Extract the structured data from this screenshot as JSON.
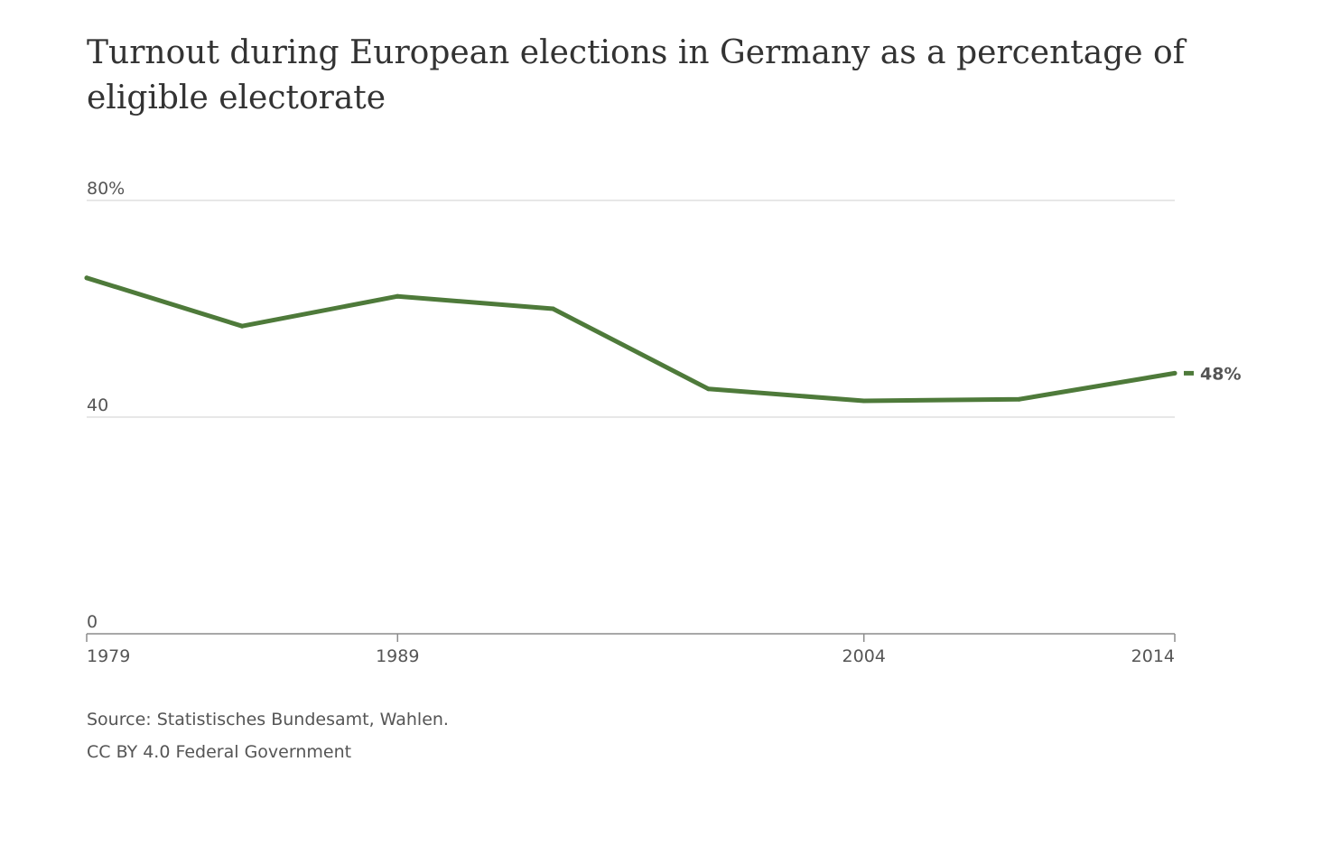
{
  "chart_data": {
    "type": "line",
    "title": "Turnout during European elections in Germany as a percentage of eligible electorate",
    "xlabel": "",
    "ylabel": "",
    "x": [
      1979,
      1984,
      1989,
      1994,
      1999,
      2004,
      2009,
      2014
    ],
    "series": [
      {
        "values": [
          65.7,
          56.8,
          62.3,
          60.0,
          45.2,
          43.0,
          43.3,
          48.1
        ]
      }
    ],
    "xlim": [
      1979,
      2014
    ],
    "ylim": [
      0,
      80
    ],
    "x_ticks": [
      {
        "value": 1979,
        "label": "1979"
      },
      {
        "value": 1989,
        "label": "1989"
      },
      {
        "value": 2004,
        "label": "2004"
      },
      {
        "value": 2014,
        "label": "2014"
      }
    ],
    "y_ticks": [
      {
        "value": 80,
        "label": "80%"
      },
      {
        "value": 40,
        "label": "40"
      },
      {
        "value": 0,
        "label": "0"
      }
    ],
    "end_label": "48%",
    "grid": true,
    "legend": "none",
    "line_color": "#4e7a3a",
    "source": "Source: Statistisches Bundesamt, Wahlen.",
    "license": "CC BY 4.0 Federal Government"
  }
}
